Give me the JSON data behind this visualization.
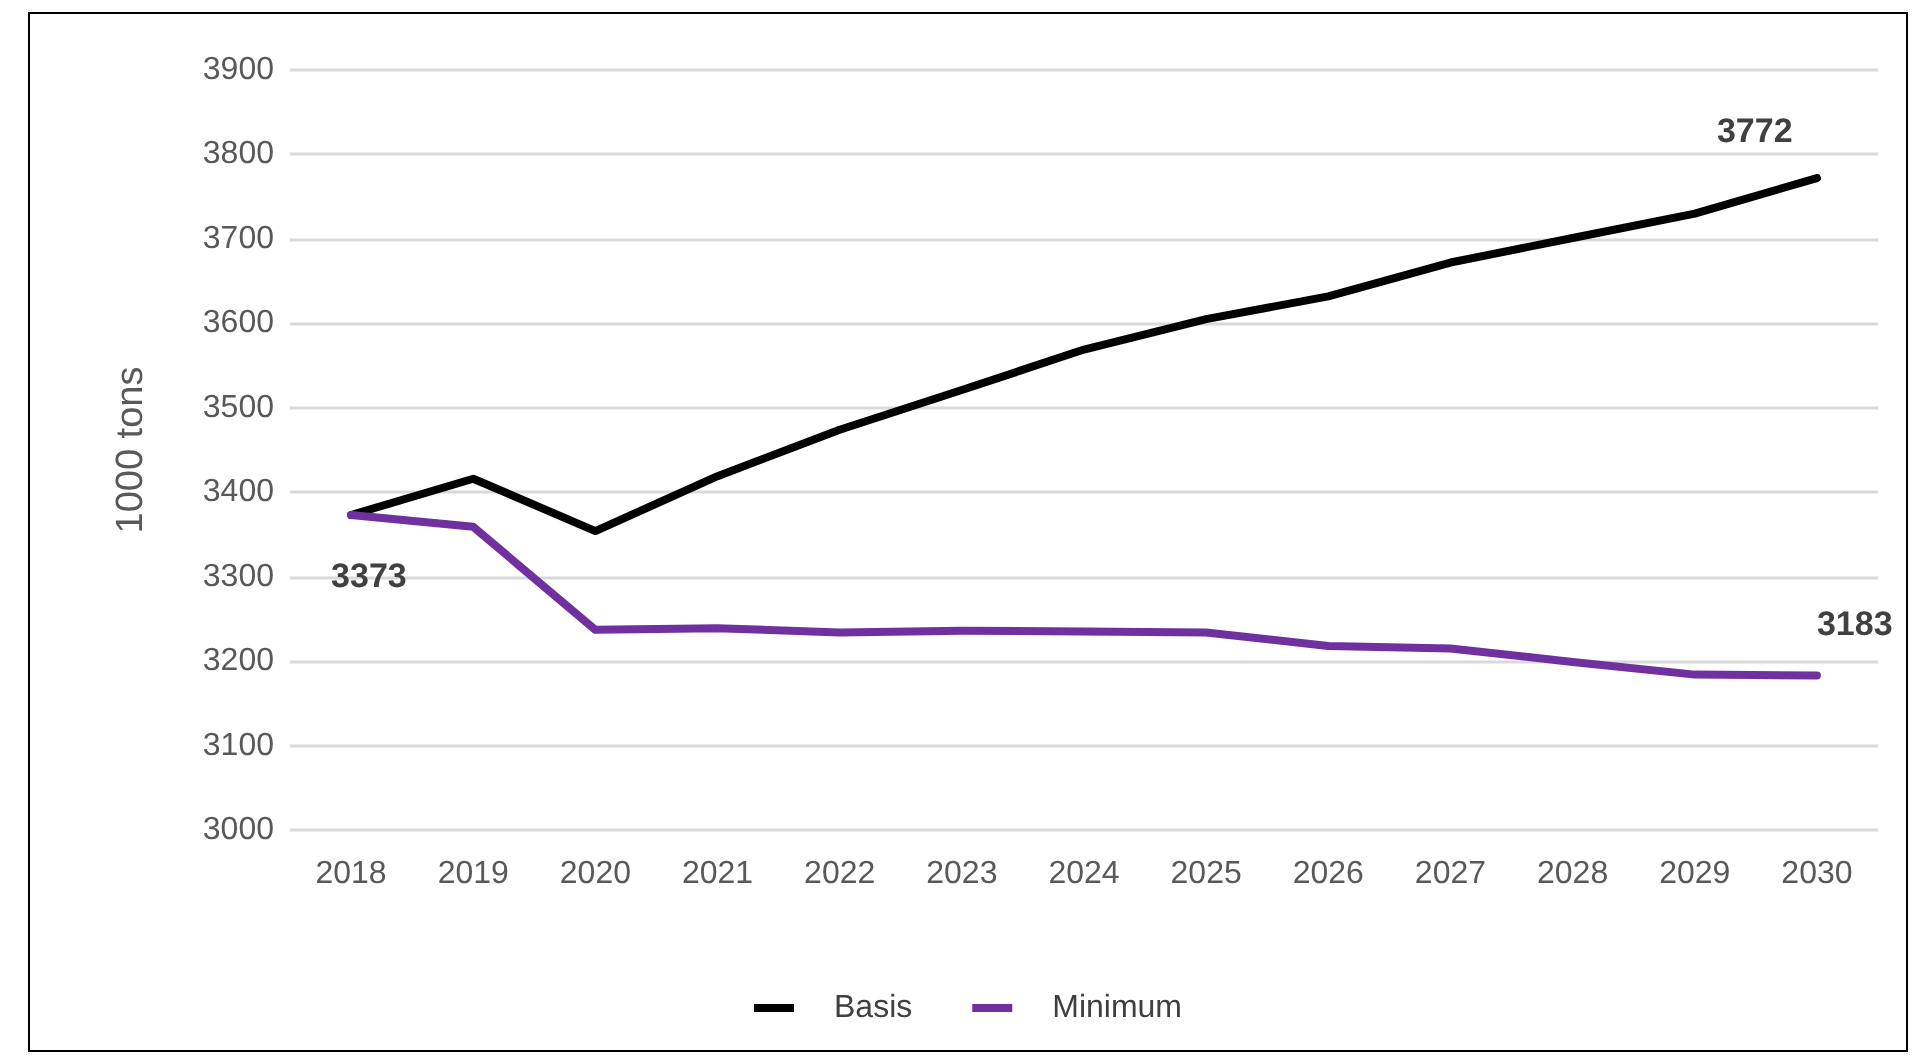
{
  "chart_data": {
    "type": "line",
    "ylabel": "1000 tons",
    "categories": [
      "2018",
      "2019",
      "2020",
      "2021",
      "2022",
      "2023",
      "2024",
      "2025",
      "2026",
      "2027",
      "2028",
      "2029",
      "2030"
    ],
    "series": [
      {
        "name": "Basis",
        "color": "#000000",
        "values": [
          3373,
          3416,
          3354,
          3419,
          3474,
          3521,
          3569,
          3605,
          3632,
          3672,
          3701,
          3730,
          3772
        ],
        "value_labels": [
          null,
          null,
          null,
          null,
          null,
          null,
          null,
          null,
          null,
          null,
          null,
          null,
          "3772"
        ]
      },
      {
        "name": "Minimum",
        "color": "#7030a0",
        "values": [
          3373,
          3359,
          3237,
          3239,
          3234,
          3236,
          3235,
          3234,
          3218,
          3215,
          3199,
          3184,
          3183
        ],
        "value_labels": [
          "3373",
          null,
          null,
          null,
          null,
          null,
          null,
          null,
          null,
          null,
          null,
          null,
          "3183"
        ]
      }
    ],
    "ylim": [
      3000,
      3900
    ],
    "yticks": [
      3000,
      3100,
      3200,
      3300,
      3400,
      3500,
      3600,
      3700,
      3800,
      3900
    ],
    "grid": "y",
    "legend": "bottom",
    "marker": "none",
    "line_style": "solid"
  }
}
